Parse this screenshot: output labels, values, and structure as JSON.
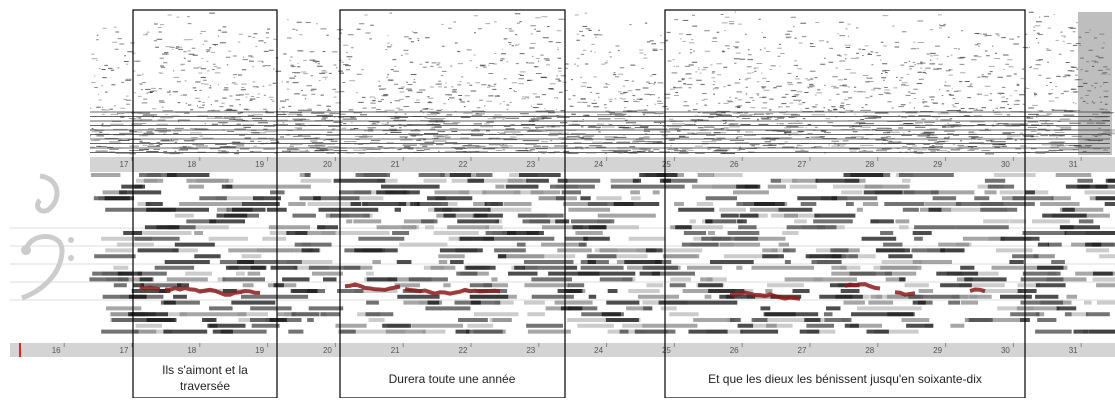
{
  "top_ruler": {
    "labels": [
      17,
      18,
      19,
      20,
      21,
      22,
      23,
      24,
      25,
      26,
      27,
      28,
      29,
      30,
      31
    ]
  },
  "bottom_ruler": {
    "labels": [
      16,
      17,
      18,
      19,
      20,
      21,
      22,
      23,
      24,
      25,
      26,
      27,
      28,
      29,
      30,
      31
    ]
  },
  "lyrics": [
    {
      "lines": [
        "Ils s'aimont et la",
        "traversée"
      ]
    },
    {
      "lines": [
        "Durera toute une année"
      ]
    },
    {
      "lines": [
        "Et que les dieux les bénissent jusqu'en soixante-dix"
      ]
    }
  ]
}
